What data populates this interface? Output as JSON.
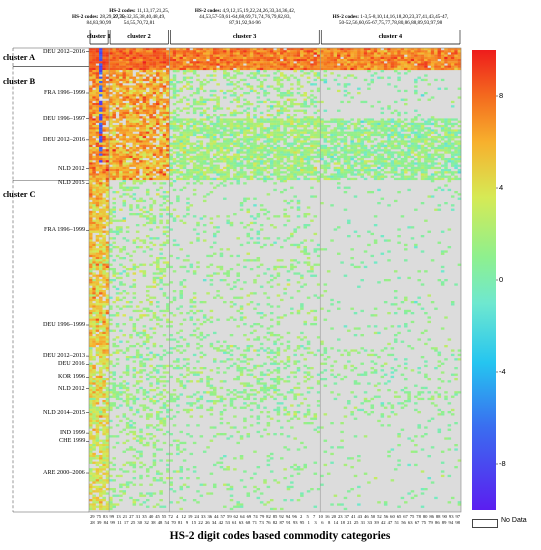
{
  "chart_data": {
    "type": "heatmap",
    "xlabel": "HS-2 digit codes based commodity categories",
    "x_tick_top": [
      "29",
      "75",
      "83",
      "99",
      "13",
      "21",
      "27",
      "31",
      "35",
      "40",
      "45",
      "55",
      "72",
      "4",
      "12",
      "19",
      "24",
      "33",
      "36",
      "44",
      "57",
      "59",
      "62",
      "64",
      "69",
      "74",
      "79",
      "82",
      "85",
      "92",
      "94",
      "96",
      "2",
      "5",
      "7",
      "10",
      "16",
      "20",
      "23",
      "37",
      "41",
      "43",
      "46",
      "50",
      "52",
      "56",
      "60",
      "65",
      "67",
      "75",
      "78",
      "80",
      "86",
      "88",
      "90",
      "93",
      "97"
    ],
    "x_tick_bottom": [
      "28",
      "39",
      "84",
      "99",
      "11",
      "17",
      "25",
      "30",
      "32",
      "38",
      "48",
      "54",
      "70",
      "81",
      "9",
      "15",
      "22",
      "26",
      "34",
      "42",
      "53",
      "61",
      "63",
      "68",
      "71",
      "73",
      "76",
      "82",
      "87",
      "91",
      "93",
      "95",
      "1",
      "3",
      "6",
      "8",
      "14",
      "18",
      "21",
      "25",
      "31",
      "33",
      "39",
      "42",
      "47",
      "51",
      "56",
      "63",
      "67",
      "75",
      "79",
      "86",
      "89",
      "94",
      "98"
    ],
    "column_clusters": [
      {
        "label": "cluster 1",
        "code_title": "HS-2 codes:",
        "codes": "28,29,59,75,\n84,83,90,99",
        "ncols": 6
      },
      {
        "label": "cluster 2",
        "code_title": "HS-2 codes:",
        "codes": "11,13,17,21,25,\n27,30-32,35,38,40,48,49,\n54,55,70,72,81",
        "ncols": 18
      },
      {
        "label": "cluster 3",
        "code_title": "HS-2 codes:",
        "codes": "4,9,12,15,19,22,24,26,33,34,36,42,\n44,53,57-59,61-64,68,69,71,74,76,79,82,83,\n87,91,92,94-96",
        "ncols": 45
      },
      {
        "label": "cluster 4",
        "code_title": "HS-2 codes:",
        "codes": "1-3,5-8,10,14,16,18,20,23,37,41,43,45-47,\n50-52,56,60,65-67,75,77,78,80,86,88,89,93,97,98",
        "ncols": 42
      }
    ],
    "row_clusters": [
      {
        "label": "cluster A",
        "top": 0.0,
        "bottom": 0.04
      },
      {
        "label": "cluster B",
        "top": 0.04,
        "bottom": 0.285
      },
      {
        "label": "cluster C",
        "top": 0.285,
        "bottom": 1.0
      }
    ],
    "row_labels": [
      {
        "text": "DEU 2012–2016",
        "pos": 0.008
      },
      {
        "text": "FRA 1996–1999",
        "pos": 0.097
      },
      {
        "text": "DEU 1996–1997",
        "pos": 0.152
      },
      {
        "text": "DEU 2012–2016",
        "pos": 0.198
      },
      {
        "text": "NLD 2012",
        "pos": 0.26
      },
      {
        "text": "NLD 2015",
        "pos": 0.292
      },
      {
        "text": "FRA 1996–1999",
        "pos": 0.393
      },
      {
        "text": "DEU 1996–1999",
        "pos": 0.597
      },
      {
        "text": "DEU 2012–2013",
        "pos": 0.664
      },
      {
        "text": "DEU 2016",
        "pos": 0.682
      },
      {
        "text": "KOR 1996",
        "pos": 0.71
      },
      {
        "text": "NLD 2012",
        "pos": 0.734
      },
      {
        "text": "NLD 2014–2015",
        "pos": 0.786
      },
      {
        "text": "IND 1999",
        "pos": 0.83
      },
      {
        "text": "CHE 1999",
        "pos": 0.848
      },
      {
        "text": "ARE 2000–2006",
        "pos": 0.916
      }
    ],
    "colorbar": {
      "range": [
        -10,
        10
      ],
      "ticks": [
        8,
        4,
        0,
        -4,
        -8
      ],
      "colors": [
        "#5b1ef0",
        "#3a6df0",
        "#25c5f0",
        "#6fe8cf",
        "#8ef08e",
        "#d6ea55",
        "#f7b02d",
        "#f46a1e",
        "#ee1c1c"
      ],
      "nodata_label": "No Data",
      "nodata_color": "#ffffff"
    },
    "background_color": "#dcdcdc"
  }
}
